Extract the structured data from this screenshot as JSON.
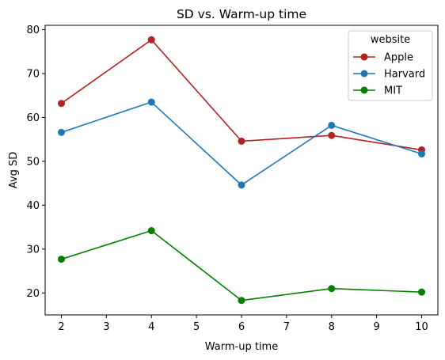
{
  "chart_data": {
    "type": "line",
    "title": "SD vs. Warm-up time",
    "xlabel": "Warm-up time",
    "ylabel": "Avg SD",
    "x": [
      2,
      4,
      6,
      8,
      10
    ],
    "xlim": [
      1.64,
      10.36
    ],
    "ylim": [
      15.0,
      81.0
    ],
    "xticks": [
      2,
      3,
      4,
      5,
      6,
      7,
      8,
      9,
      10
    ],
    "yticks": [
      20,
      30,
      40,
      50,
      60,
      70,
      80
    ],
    "grid": false,
    "legend": {
      "title": "website",
      "placement": "top-right"
    },
    "series": [
      {
        "name": "Apple",
        "color": "#b22222",
        "values": [
          63.2,
          77.7,
          54.6,
          55.9,
          52.6
        ]
      },
      {
        "name": "Harvard",
        "color": "#1f77b4",
        "values": [
          56.6,
          63.5,
          44.6,
          58.2,
          51.7
        ]
      },
      {
        "name": "MIT",
        "color": "#008000",
        "values": [
          27.7,
          34.2,
          18.3,
          21.0,
          20.2
        ]
      }
    ]
  }
}
